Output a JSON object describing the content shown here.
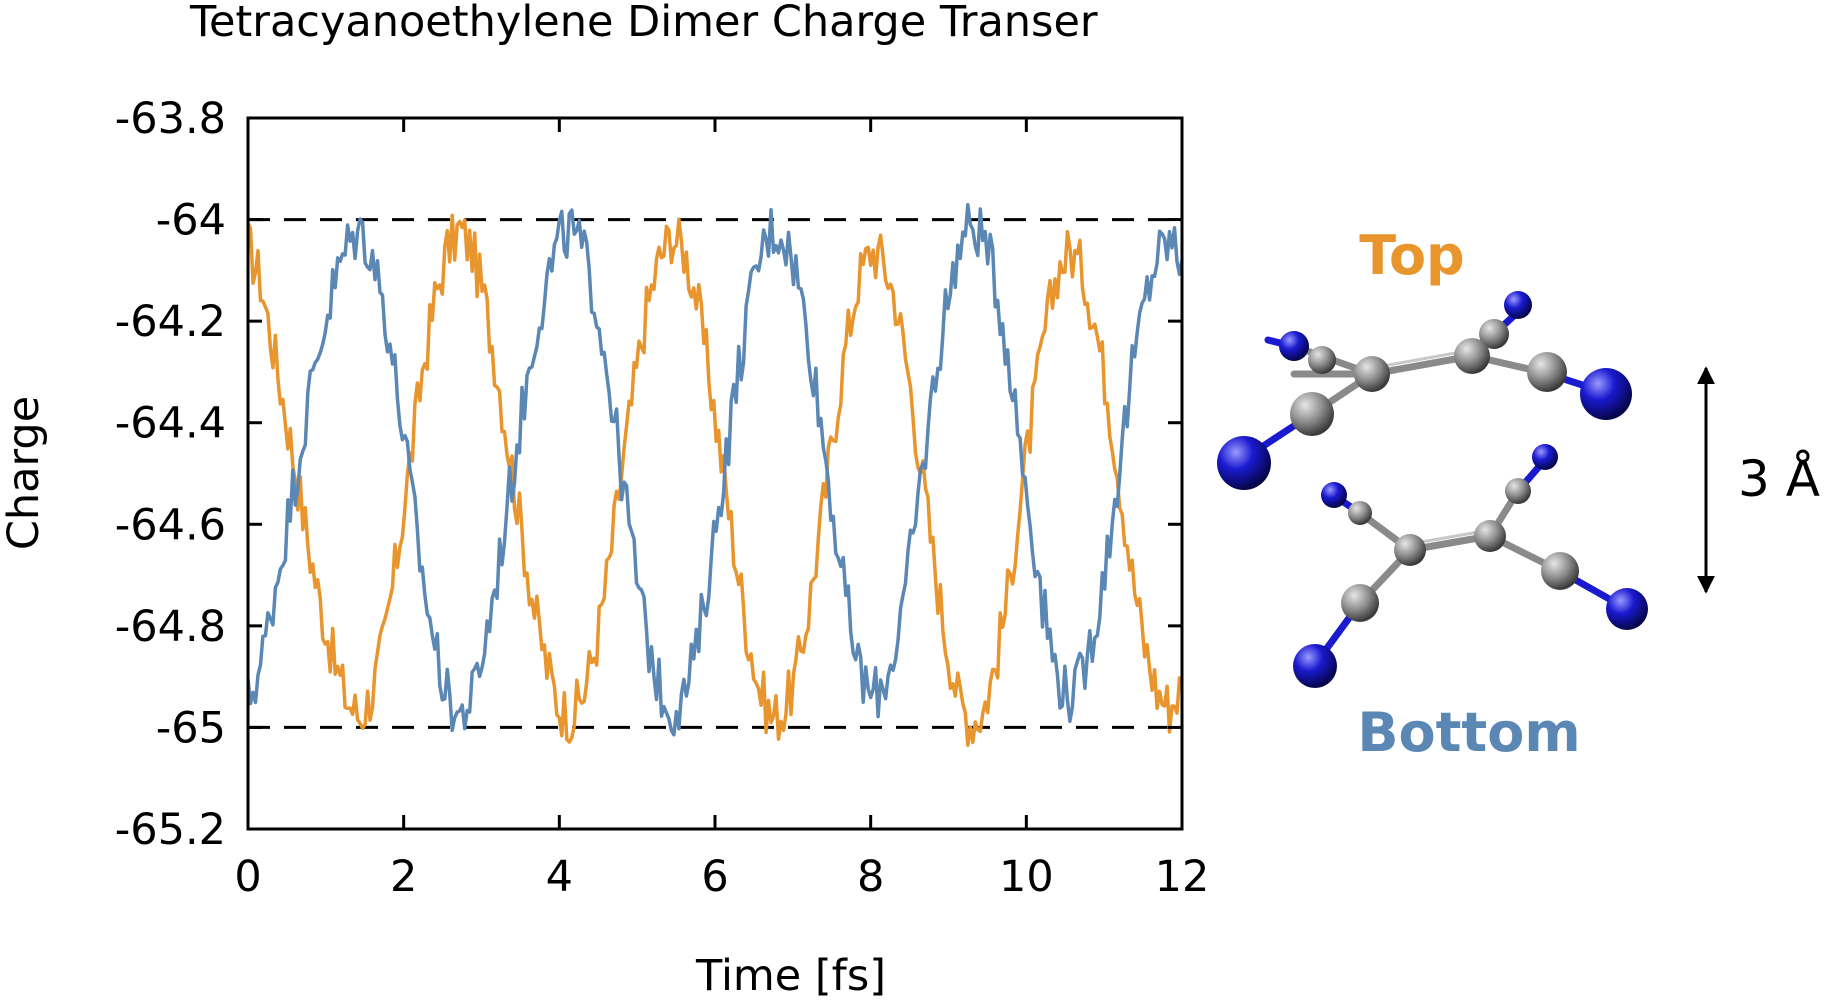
{
  "chart_data": {
    "type": "line",
    "title": "Tetracyanoethylene Dimer Charge Transer",
    "xlabel": "Time [fs]",
    "ylabel": "Charge",
    "xlim": [
      0,
      12
    ],
    "ylim": [
      -65.2,
      -63.8
    ],
    "xticks": [
      "0",
      "2",
      "4",
      "6",
      "8",
      "10",
      "12"
    ],
    "yticks": [
      "-63.8",
      "-64",
      "-64.2",
      "-64.4",
      "-64.6",
      "-64.8",
      "-65",
      "-65.2"
    ],
    "grid": false,
    "reference_lines": [
      -64.0,
      -65.0
    ],
    "series": [
      {
        "name": "Top",
        "color": "#e8952e",
        "x": [
          0,
          0.16,
          0.32,
          0.48,
          0.64,
          0.8,
          0.96,
          1.12,
          1.28,
          1.44,
          1.6,
          1.76,
          1.92,
          2.08,
          2.24,
          2.4,
          2.56,
          2.72,
          2.88,
          3.04,
          3.2,
          3.36,
          3.52,
          3.68,
          3.84,
          4,
          4.16,
          4.32,
          4.48,
          4.64,
          4.8,
          4.96,
          5.12,
          5.28,
          5.44,
          5.6,
          5.76,
          5.92,
          6.08,
          6.24,
          6.4,
          6.56,
          6.72,
          6.88,
          7.04,
          7.2,
          7.36,
          7.52,
          7.68,
          7.84,
          8,
          8.16,
          8.32,
          8.48,
          8.64,
          8.8,
          8.96,
          9.12,
          9.28,
          9.44,
          9.6,
          9.76,
          9.92,
          10.08,
          10.24,
          10.4,
          10.56,
          10.72,
          10.88,
          11.04,
          11.2,
          11.36,
          11.52,
          11.68,
          11.84,
          12
        ],
        "values": [
          -64.05,
          -64.12,
          -64.25,
          -64.38,
          -64.52,
          -64.66,
          -64.78,
          -64.88,
          -64.95,
          -64.98,
          -64.93,
          -64.82,
          -64.66,
          -64.48,
          -64.3,
          -64.16,
          -64.06,
          -64.02,
          -64.06,
          -64.16,
          -64.3,
          -64.46,
          -64.62,
          -64.77,
          -64.88,
          -64.96,
          -64.98,
          -64.93,
          -64.83,
          -64.68,
          -64.5,
          -64.33,
          -64.18,
          -64.08,
          -64.03,
          -64.06,
          -64.15,
          -64.3,
          -64.47,
          -64.64,
          -64.8,
          -64.92,
          -64.98,
          -64.97,
          -64.9,
          -64.77,
          -64.6,
          -64.42,
          -64.25,
          -64.12,
          -64.06,
          -64.08,
          -64.16,
          -64.3,
          -64.48,
          -64.66,
          -64.82,
          -64.94,
          -64.99,
          -64.97,
          -64.88,
          -64.74,
          -64.56,
          -64.38,
          -64.22,
          -64.1,
          -64.06,
          -64.1,
          -64.2,
          -64.34,
          -64.52,
          -64.7,
          -64.84,
          -64.93,
          -64.96,
          -64.92
        ]
      },
      {
        "name": "Bottom",
        "color": "#5b87b5",
        "x": [
          0,
          0.16,
          0.32,
          0.48,
          0.64,
          0.8,
          0.96,
          1.12,
          1.28,
          1.44,
          1.6,
          1.76,
          1.92,
          2.08,
          2.24,
          2.4,
          2.56,
          2.72,
          2.88,
          3.04,
          3.2,
          3.36,
          3.52,
          3.68,
          3.84,
          4,
          4.16,
          4.32,
          4.48,
          4.64,
          4.8,
          4.96,
          5.12,
          5.28,
          5.44,
          5.6,
          5.76,
          5.92,
          6.08,
          6.24,
          6.4,
          6.56,
          6.72,
          6.88,
          7.04,
          7.2,
          7.36,
          7.52,
          7.68,
          7.84,
          8,
          8.16,
          8.32,
          8.48,
          8.64,
          8.8,
          8.96,
          9.12,
          9.28,
          9.44,
          9.6,
          9.76,
          9.92,
          10.08,
          10.24,
          10.4,
          10.56,
          10.72,
          10.88,
          11.04,
          11.2,
          11.36,
          11.52,
          11.68,
          11.84,
          12
        ],
        "values": [
          -64.95,
          -64.88,
          -64.75,
          -64.62,
          -64.48,
          -64.34,
          -64.22,
          -64.12,
          -64.05,
          -64.02,
          -64.07,
          -64.18,
          -64.34,
          -64.52,
          -64.7,
          -64.84,
          -64.94,
          -64.98,
          -64.94,
          -64.84,
          -64.7,
          -64.54,
          -64.38,
          -64.23,
          -64.12,
          -64.04,
          -64.02,
          -64.07,
          -64.17,
          -64.32,
          -64.5,
          -64.67,
          -64.82,
          -64.92,
          -64.97,
          -64.94,
          -64.85,
          -64.7,
          -64.53,
          -64.36,
          -64.2,
          -64.08,
          -64.02,
          -64.03,
          -64.1,
          -64.23,
          -64.4,
          -64.58,
          -64.75,
          -64.88,
          -64.94,
          -64.92,
          -64.84,
          -64.7,
          -64.52,
          -64.34,
          -64.18,
          -64.06,
          -64.01,
          -64.03,
          -64.12,
          -64.26,
          -64.44,
          -64.62,
          -64.78,
          -64.9,
          -64.94,
          -64.9,
          -64.8,
          -64.66,
          -64.48,
          -64.3,
          -64.16,
          -64.07,
          -64.04,
          -64.08
        ]
      }
    ]
  },
  "molecule": {
    "top_label": "Top",
    "bottom_label": "Bottom",
    "distance_label": "3 Å",
    "carbon_color": "#8c8c8c",
    "nitrogen_color": "#1010b8"
  }
}
